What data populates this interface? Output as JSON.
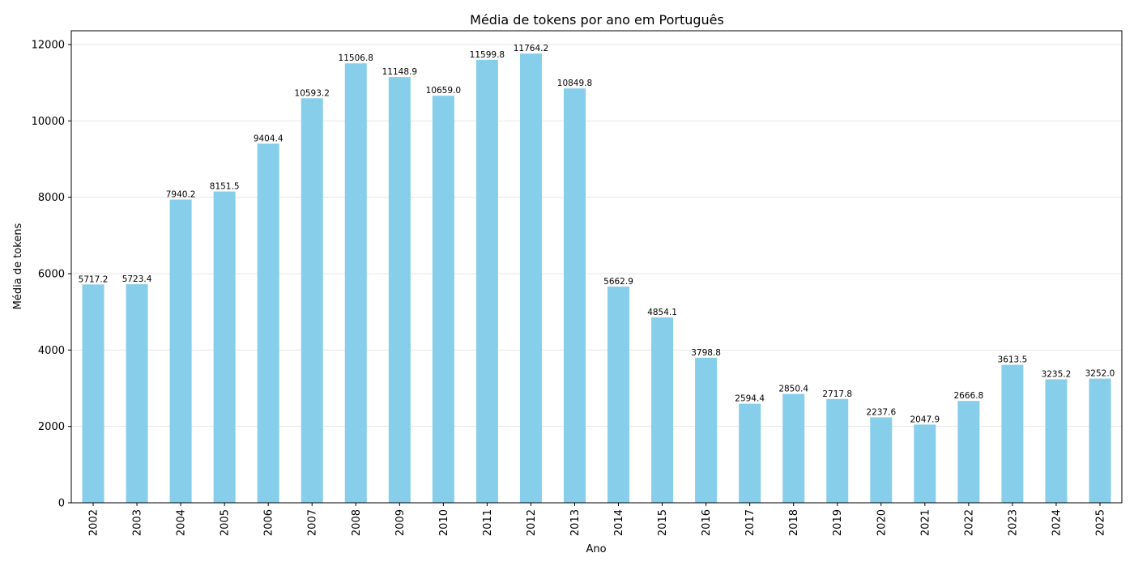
{
  "chart_data": {
    "type": "bar",
    "title": "Média de tokens por ano em Português",
    "xlabel": "Ano",
    "ylabel": "Média de tokens",
    "ylim": [
      0,
      12360
    ],
    "yticks": [
      0,
      2000,
      4000,
      6000,
      8000,
      10000,
      12000
    ],
    "grid": "y",
    "bar_color": "#87CEEB",
    "categories": [
      "2002",
      "2003",
      "2004",
      "2005",
      "2006",
      "2007",
      "2008",
      "2009",
      "2010",
      "2011",
      "2012",
      "2013",
      "2014",
      "2015",
      "2016",
      "2017",
      "2018",
      "2019",
      "2020",
      "2021",
      "2022",
      "2023",
      "2024",
      "2025"
    ],
    "values": [
      5717.2,
      5723.4,
      7940.2,
      8151.5,
      9404.4,
      10593.2,
      11506.8,
      11148.9,
      10659.0,
      11599.8,
      11764.2,
      10849.8,
      5662.9,
      4854.1,
      3798.8,
      2594.4,
      2850.4,
      2717.8,
      2237.6,
      2047.9,
      2666.8,
      3613.5,
      3235.2,
      3252.0
    ],
    "value_labels": [
      "5717.2",
      "5723.4",
      "7940.2",
      "8151.5",
      "9404.4",
      "10593.2",
      "11506.8",
      "11148.9",
      "10659.0",
      "11599.8",
      "11764.2",
      "10849.8",
      "5662.9",
      "4854.1",
      "3798.8",
      "2594.4",
      "2850.4",
      "2717.8",
      "2237.6",
      "2047.9",
      "2666.8",
      "3613.5",
      "3235.2",
      "3252.0"
    ]
  }
}
